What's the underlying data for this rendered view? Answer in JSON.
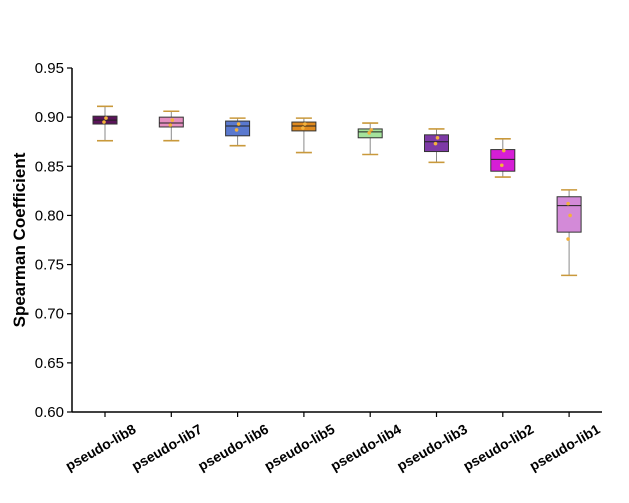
{
  "chart_data": {
    "type": "box",
    "title": "",
    "xlabel": "",
    "ylabel": "Spearman Coefficient",
    "ylim": [
      0.6,
      0.95
    ],
    "yticks": [
      "0.60",
      "0.65",
      "0.70",
      "0.75",
      "0.80",
      "0.85",
      "0.90",
      "0.95"
    ],
    "grid": false,
    "legend": "none",
    "categories": [
      "pseudo-lib8",
      "pseudo-lib7",
      "pseudo-lib6",
      "pseudo-lib5",
      "pseudo-lib4",
      "pseudo-lib3",
      "pseudo-lib2",
      "pseudo-lib1"
    ],
    "boxes": [
      {
        "name": "pseudo-lib8",
        "whisker_low": 0.876,
        "q1": 0.893,
        "median": 0.897,
        "q3": 0.901,
        "whisker_high": 0.911,
        "color": "#5b145a",
        "points": [
          0.895,
          0.899
        ]
      },
      {
        "name": "pseudo-lib7",
        "whisker_low": 0.876,
        "q1": 0.89,
        "median": 0.894,
        "q3": 0.9,
        "whisker_high": 0.906,
        "color": "#e58fc0",
        "points": [
          0.892,
          0.897
        ]
      },
      {
        "name": "pseudo-lib6",
        "whisker_low": 0.871,
        "q1": 0.881,
        "median": 0.891,
        "q3": 0.896,
        "whisker_high": 0.899,
        "color": "#5a79cf",
        "points": [
          0.887,
          0.893
        ]
      },
      {
        "name": "pseudo-lib5",
        "whisker_low": 0.864,
        "q1": 0.886,
        "median": 0.891,
        "q3": 0.895,
        "whisker_high": 0.899,
        "color": "#e08a1e",
        "points": [
          0.889,
          0.893
        ]
      },
      {
        "name": "pseudo-lib4",
        "whisker_low": 0.862,
        "q1": 0.879,
        "median": 0.885,
        "q3": 0.888,
        "whisker_high": 0.894,
        "color": "#a5e39c",
        "points": [
          0.884,
          0.887
        ]
      },
      {
        "name": "pseudo-lib3",
        "whisker_low": 0.854,
        "q1": 0.865,
        "median": 0.875,
        "q3": 0.882,
        "whisker_high": 0.888,
        "color": "#7d3aa6",
        "points": [
          0.873,
          0.879
        ]
      },
      {
        "name": "pseudo-lib2",
        "whisker_low": 0.839,
        "q1": 0.845,
        "median": 0.857,
        "q3": 0.867,
        "whisker_high": 0.878,
        "color": "#d61ed6",
        "points": [
          0.851,
          0.866
        ]
      },
      {
        "name": "pseudo-lib1",
        "whisker_low": 0.739,
        "q1": 0.783,
        "median": 0.81,
        "q3": 0.819,
        "whisker_high": 0.826,
        "color": "#d38ad8",
        "points": [
          0.776,
          0.8,
          0.812
        ]
      }
    ],
    "whisker_color": "#c9993b",
    "point_color": "#f4b23c"
  }
}
